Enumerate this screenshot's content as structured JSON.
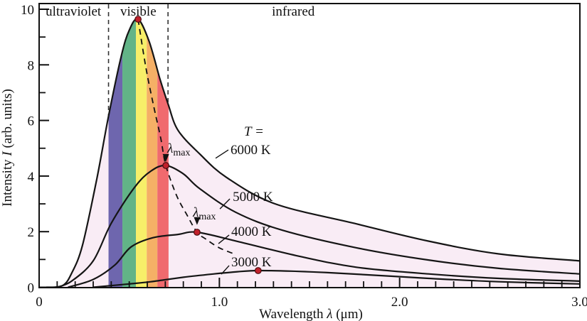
{
  "chart_data": {
    "type": "line",
    "xlabel_parts": [
      {
        "t": "Wavelength "
      },
      {
        "t": "λ",
        "italic": true
      },
      {
        "t": " (μm)"
      }
    ],
    "ylabel_parts": [
      {
        "t": "Intensity "
      },
      {
        "t": "I",
        "italic": true
      },
      {
        "t": " (arb. units)"
      }
    ],
    "xlim": [
      0,
      3
    ],
    "ylim": [
      0,
      10
    ],
    "x_major_ticks": [
      {
        "v": 0,
        "l": "0"
      },
      {
        "v": 1,
        "l": "1.0"
      },
      {
        "v": 2,
        "l": "2.0"
      },
      {
        "v": 3,
        "l": "3.0"
      }
    ],
    "x_minor_step": 0.1,
    "y_major_ticks": [
      {
        "v": 0,
        "l": "0"
      },
      {
        "v": 2,
        "l": "2"
      },
      {
        "v": 4,
        "l": "4"
      },
      {
        "v": 6,
        "l": "6"
      },
      {
        "v": 8,
        "l": "8"
      },
      {
        "v": 10,
        "l": "10"
      }
    ],
    "y_minor_step": 1,
    "regions": [
      {
        "label": "ultraviolet",
        "x": 0.19
      },
      {
        "label": "visible",
        "x": 0.55
      },
      {
        "label": "infrared",
        "x": 1.41
      }
    ],
    "visible_guides": [
      0.385,
      0.715
    ],
    "spectrum_bands": [
      {
        "name": "violet",
        "color": "#6e66ae",
        "from": 0.385,
        "to": 0.462
      },
      {
        "name": "green",
        "color": "#62b487",
        "from": 0.462,
        "to": 0.537
      },
      {
        "name": "yellow",
        "color": "#f7ef69",
        "from": 0.537,
        "to": 0.597
      },
      {
        "name": "orange",
        "color": "#f5b066",
        "from": 0.597,
        "to": 0.656
      },
      {
        "name": "red",
        "color": "#f06a6e",
        "from": 0.656,
        "to": 0.718
      }
    ],
    "series": [
      {
        "name": "6000 K",
        "points": [
          [
            0.04,
            0
          ],
          [
            0.13,
            0.06
          ],
          [
            0.18,
            0.5
          ],
          [
            0.24,
            1.5
          ],
          [
            0.32,
            3.9
          ],
          [
            0.385,
            6.15
          ],
          [
            0.455,
            8.3
          ],
          [
            0.5,
            9.25
          ],
          [
            0.549,
            9.64
          ],
          [
            0.61,
            8.85
          ],
          [
            0.67,
            7.5
          ],
          [
            0.715,
            6.6
          ],
          [
            0.77,
            5.65
          ],
          [
            0.89,
            4.8
          ],
          [
            1.04,
            3.95
          ],
          [
            1.31,
            3.0
          ],
          [
            1.76,
            2.28
          ],
          [
            2.16,
            1.66
          ],
          [
            2.55,
            1.2
          ],
          [
            3.0,
            0.95
          ]
        ]
      },
      {
        "name": "5000 K",
        "points": [
          [
            0.1,
            0
          ],
          [
            0.18,
            0.22
          ],
          [
            0.3,
            0.95
          ],
          [
            0.4,
            2.3
          ],
          [
            0.53,
            3.6
          ],
          [
            0.62,
            4.18
          ],
          [
            0.703,
            4.38
          ],
          [
            0.8,
            4.08
          ],
          [
            0.89,
            3.55
          ],
          [
            1.09,
            2.7
          ],
          [
            1.35,
            2.05
          ],
          [
            1.76,
            1.42
          ],
          [
            2.16,
            0.98
          ],
          [
            2.55,
            0.68
          ],
          [
            3.0,
            0.48
          ]
        ]
      },
      {
        "name": "4000 K",
        "points": [
          [
            0.16,
            0
          ],
          [
            0.3,
            0.28
          ],
          [
            0.42,
            0.8
          ],
          [
            0.51,
            1.45
          ],
          [
            0.63,
            1.78
          ],
          [
            0.77,
            1.9
          ],
          [
            0.876,
            1.98
          ],
          [
            1.1,
            1.65
          ],
          [
            1.44,
            1.12
          ],
          [
            1.76,
            0.72
          ],
          [
            2.16,
            0.48
          ],
          [
            2.55,
            0.32
          ],
          [
            3.0,
            0.22
          ]
        ]
      },
      {
        "name": "3000 K",
        "points": [
          [
            0.3,
            0
          ],
          [
            0.5,
            0.12
          ],
          [
            0.62,
            0.2
          ],
          [
            0.8,
            0.36
          ],
          [
            0.97,
            0.48
          ],
          [
            1.1,
            0.56
          ],
          [
            1.215,
            0.6
          ],
          [
            1.4,
            0.58
          ],
          [
            1.62,
            0.52
          ],
          [
            1.9,
            0.42
          ],
          [
            2.16,
            0.32
          ],
          [
            2.55,
            0.2
          ],
          [
            3.0,
            0.12
          ]
        ]
      }
    ],
    "peaks": [
      {
        "series": "6000 K",
        "x": 0.549,
        "y": 9.64
      },
      {
        "series": "5000 K",
        "x": 0.703,
        "y": 4.38
      },
      {
        "series": "4000 K",
        "x": 0.876,
        "y": 1.98
      },
      {
        "series": "3000 K",
        "x": 1.215,
        "y": 0.6
      }
    ],
    "wien_line": {
      "points": [
        [
          0.549,
          9.64
        ],
        [
          0.592,
          7.91
        ],
        [
          0.636,
          6.5
        ],
        [
          0.675,
          5.35
        ],
        [
          0.703,
          4.38
        ],
        [
          0.762,
          3.31
        ],
        [
          0.821,
          2.59
        ],
        [
          0.876,
          1.98
        ],
        [
          0.928,
          1.72
        ],
        [
          0.999,
          1.42
        ],
        [
          1.086,
          1.19
        ]
      ],
      "arrows": [
        {
          "x": 0.703,
          "y": 4.51
        },
        {
          "x": 0.876,
          "y": 2.24
        }
      ]
    },
    "annotations": {
      "t_label": {
        "text": "T =",
        "x": 1.137,
        "y": 5.45
      },
      "temp_labels": [
        {
          "text": "6000 K",
          "x": 1.062,
          "y": 4.79,
          "line": [
            1.05,
            4.94,
            0.979,
            4.64
          ]
        },
        {
          "text": "5000 K",
          "x": 1.074,
          "y": 3.1,
          "line": [
            1.058,
            3.18,
            1.003,
            2.82
          ]
        },
        {
          "text": "4000 K",
          "x": 1.066,
          "y": 1.85,
          "line": [
            1.054,
            1.88,
            0.995,
            1.57
          ]
        },
        {
          "text": "3000 K",
          "x": 1.066,
          "y": 0.75,
          "line": [
            1.054,
            0.78,
            1.011,
            0.47
          ]
        }
      ],
      "lambda_max": {
        "base": "λ",
        "sub": "max",
        "positions": [
          {
            "x": 0.711,
            "y": 4.84
          },
          {
            "x": 0.853,
            "y": 2.54
          }
        ]
      }
    },
    "colors": {
      "area_fill": "#f9ecf5",
      "curve": "#151515",
      "dot_fill": "#c1202b",
      "dot_edge": "#4a0c10",
      "guide": "#333333",
      "text": "#111111"
    },
    "legend_position": "none",
    "grid": false
  }
}
